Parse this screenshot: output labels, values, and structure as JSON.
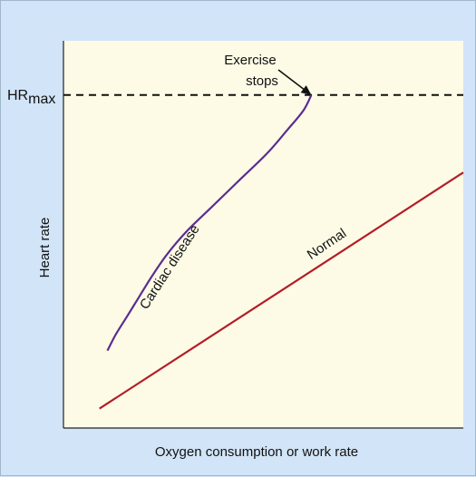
{
  "chart_data": {
    "type": "line",
    "xlabel": "Oxygen consumption or work rate",
    "ylabel": "Heart rate",
    "xlim": [
      0,
      100
    ],
    "ylim": [
      0,
      100
    ],
    "grid": false,
    "legend": "none",
    "hr_max": {
      "label_main": "HR",
      "label_sub": "max",
      "value": 86
    },
    "annotation": {
      "line1": "Exercise",
      "line2": "stops",
      "target": [
        62,
        86
      ]
    },
    "series": [
      {
        "name": "Cardiac disease",
        "color": "#5b2d91",
        "x": [
          11,
          13,
          16,
          19,
          22,
          26,
          31,
          37,
          44,
          51,
          56,
          60,
          62
        ],
        "y": [
          20,
          24,
          29,
          34,
          39,
          45,
          51,
          57,
          64,
          71,
          77,
          82,
          86
        ]
      },
      {
        "name": "Normal",
        "color": "#b21e28",
        "x": [
          9,
          100
        ],
        "y": [
          5,
          66
        ]
      }
    ]
  },
  "colors": {
    "page_background": "#d2e4f7",
    "plot_background": "#fdfbe6",
    "axis": "#222222",
    "dashed_line": "#111111"
  }
}
